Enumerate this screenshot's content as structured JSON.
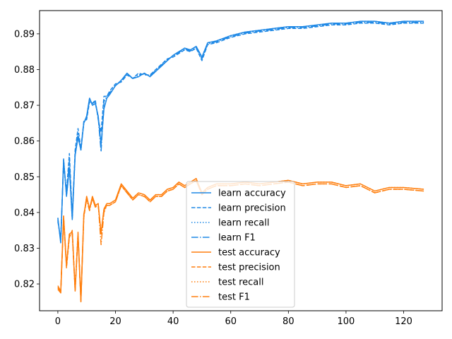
{
  "chart_data": {
    "type": "line",
    "title": "",
    "xlabel": "",
    "ylabel": "",
    "xlim": [
      -6.35,
      133.35
    ],
    "ylim": [
      0.8125,
      0.8965
    ],
    "xticks": [
      0,
      20,
      40,
      60,
      80,
      100,
      120
    ],
    "yticks": [
      0.82,
      0.83,
      0.84,
      0.85,
      0.86,
      0.87,
      0.88,
      0.89
    ],
    "grid": false,
    "legend_position": "center-bottom",
    "colors": {
      "learn": "#1f77b4",
      "learn_bright": "#1e88e5",
      "test": "#ff7f0e"
    },
    "x_knots": [
      0,
      1,
      2,
      3,
      4,
      5,
      6,
      7,
      8,
      9,
      10,
      11,
      12,
      13,
      14,
      15,
      16,
      17,
      18,
      20,
      22,
      24,
      26,
      28,
      30,
      32,
      34,
      36,
      38,
      40,
      42,
      44,
      46,
      48,
      50,
      52,
      55,
      60,
      65,
      70,
      75,
      80,
      85,
      90,
      95,
      100,
      105,
      110,
      115,
      120,
      127
    ],
    "series": [
      {
        "name": "learn accuracy",
        "group": "learn",
        "linestyle": "solid",
        "values": [
          0.8385,
          0.8315,
          0.855,
          0.8445,
          0.8525,
          0.838,
          0.856,
          0.861,
          0.8575,
          0.865,
          0.867,
          0.872,
          0.87,
          0.8705,
          0.867,
          0.859,
          0.869,
          0.872,
          0.873,
          0.8755,
          0.877,
          0.879,
          0.8775,
          0.878,
          0.879,
          0.878,
          0.8795,
          0.881,
          0.8825,
          0.884,
          0.885,
          0.886,
          0.8855,
          0.8865,
          0.8835,
          0.8875,
          0.888,
          0.8895,
          0.8905,
          0.891,
          0.8915,
          0.892,
          0.892,
          0.8925,
          0.893,
          0.893,
          0.8935,
          0.8935,
          0.893,
          0.8935,
          0.8935
        ]
      },
      {
        "name": "learn precision",
        "group": "learn",
        "linestyle": "dashed",
        "values": [
          0.8375,
          0.8325,
          0.8535,
          0.846,
          0.8565,
          0.839,
          0.8575,
          0.8635,
          0.858,
          0.8655,
          0.866,
          0.871,
          0.8705,
          0.8715,
          0.866,
          0.8625,
          0.8725,
          0.8725,
          0.874,
          0.876,
          0.8765,
          0.8785,
          0.8775,
          0.879,
          0.8785,
          0.8785,
          0.88,
          0.8815,
          0.883,
          0.8835,
          0.8845,
          0.8855,
          0.885,
          0.886,
          0.8825,
          0.887,
          0.8875,
          0.889,
          0.89,
          0.8905,
          0.891,
          0.8915,
          0.8915,
          0.892,
          0.8925,
          0.8925,
          0.893,
          0.893,
          0.8925,
          0.893,
          0.893
        ]
      },
      {
        "name": "learn recall",
        "group": "learn",
        "linestyle": "dotted",
        "values": [
          0.8385,
          0.8315,
          0.855,
          0.8445,
          0.8525,
          0.838,
          0.856,
          0.861,
          0.8575,
          0.865,
          0.867,
          0.872,
          0.87,
          0.8705,
          0.867,
          0.859,
          0.869,
          0.872,
          0.873,
          0.8755,
          0.877,
          0.879,
          0.8775,
          0.878,
          0.879,
          0.878,
          0.8795,
          0.881,
          0.8825,
          0.884,
          0.885,
          0.886,
          0.8855,
          0.8865,
          0.8835,
          0.8875,
          0.888,
          0.8895,
          0.8905,
          0.891,
          0.8915,
          0.892,
          0.892,
          0.8925,
          0.893,
          0.893,
          0.8935,
          0.8935,
          0.893,
          0.8935,
          0.8935
        ]
      },
      {
        "name": "learn F1",
        "group": "learn",
        "linestyle": "dashdot",
        "values": [
          0.838,
          0.832,
          0.8545,
          0.845,
          0.8545,
          0.8385,
          0.8565,
          0.862,
          0.8575,
          0.865,
          0.8665,
          0.8715,
          0.8705,
          0.871,
          0.8665,
          0.857,
          0.871,
          0.8725,
          0.8735,
          0.8755,
          0.8768,
          0.8788,
          0.8775,
          0.8785,
          0.8788,
          0.8783,
          0.8798,
          0.8813,
          0.8828,
          0.8838,
          0.8848,
          0.8858,
          0.8852,
          0.8862,
          0.883,
          0.8872,
          0.8878,
          0.8892,
          0.8902,
          0.8908,
          0.8912,
          0.8918,
          0.8918,
          0.8922,
          0.8928,
          0.8928,
          0.8932,
          0.8932,
          0.8928,
          0.8932,
          0.8932
        ]
      },
      {
        "name": "test accuracy",
        "group": "test",
        "linestyle": "solid",
        "values": [
          0.819,
          0.8175,
          0.839,
          0.825,
          0.834,
          0.8345,
          0.818,
          0.834,
          0.815,
          0.839,
          0.8445,
          0.841,
          0.8445,
          0.842,
          0.8425,
          0.834,
          0.841,
          0.8425,
          0.8425,
          0.8435,
          0.848,
          0.846,
          0.844,
          0.8455,
          0.845,
          0.8435,
          0.845,
          0.845,
          0.8465,
          0.847,
          0.8485,
          0.8475,
          0.8485,
          0.8495,
          0.8455,
          0.847,
          0.848,
          0.848,
          0.8485,
          0.848,
          0.8485,
          0.849,
          0.848,
          0.8485,
          0.8485,
          0.8475,
          0.848,
          0.846,
          0.847,
          0.847,
          0.8465
        ]
      },
      {
        "name": "test precision",
        "group": "test",
        "linestyle": "dashed",
        "values": [
          0.8185,
          0.8175,
          0.838,
          0.8245,
          0.833,
          0.835,
          0.8185,
          0.8345,
          0.8155,
          0.8385,
          0.844,
          0.841,
          0.844,
          0.8415,
          0.842,
          0.8345,
          0.8405,
          0.842,
          0.842,
          0.843,
          0.8475,
          0.8455,
          0.8435,
          0.845,
          0.8445,
          0.843,
          0.8445,
          0.8445,
          0.846,
          0.8465,
          0.848,
          0.847,
          0.848,
          0.849,
          0.845,
          0.8465,
          0.8475,
          0.8475,
          0.848,
          0.8475,
          0.848,
          0.8485,
          0.8475,
          0.848,
          0.848,
          0.847,
          0.8475,
          0.8455,
          0.8465,
          0.8465,
          0.846
        ]
      },
      {
        "name": "test recall",
        "group": "test",
        "linestyle": "dotted",
        "values": [
          0.819,
          0.8175,
          0.839,
          0.825,
          0.834,
          0.8345,
          0.818,
          0.834,
          0.815,
          0.839,
          0.8445,
          0.841,
          0.8445,
          0.842,
          0.8425,
          0.834,
          0.841,
          0.8425,
          0.8425,
          0.8435,
          0.848,
          0.846,
          0.844,
          0.8455,
          0.845,
          0.8435,
          0.845,
          0.845,
          0.8465,
          0.847,
          0.8485,
          0.8475,
          0.8485,
          0.8495,
          0.8455,
          0.847,
          0.848,
          0.848,
          0.8485,
          0.848,
          0.8485,
          0.849,
          0.848,
          0.8485,
          0.8485,
          0.8475,
          0.848,
          0.846,
          0.847,
          0.847,
          0.8465
        ]
      },
      {
        "name": "test F1",
        "group": "test",
        "linestyle": "dashdot",
        "values": [
          0.8195,
          0.818,
          0.8385,
          0.8255,
          0.8335,
          0.834,
          0.8185,
          0.8335,
          0.8155,
          0.8395,
          0.8435,
          0.8405,
          0.844,
          0.8415,
          0.8425,
          0.831,
          0.84,
          0.842,
          0.842,
          0.843,
          0.8475,
          0.8455,
          0.8435,
          0.845,
          0.8445,
          0.843,
          0.8445,
          0.8445,
          0.846,
          0.8465,
          0.848,
          0.847,
          0.848,
          0.849,
          0.845,
          0.8465,
          0.8475,
          0.8475,
          0.848,
          0.8475,
          0.848,
          0.8485,
          0.8475,
          0.848,
          0.848,
          0.847,
          0.8475,
          0.8455,
          0.8465,
          0.8465,
          0.846
        ]
      }
    ]
  }
}
